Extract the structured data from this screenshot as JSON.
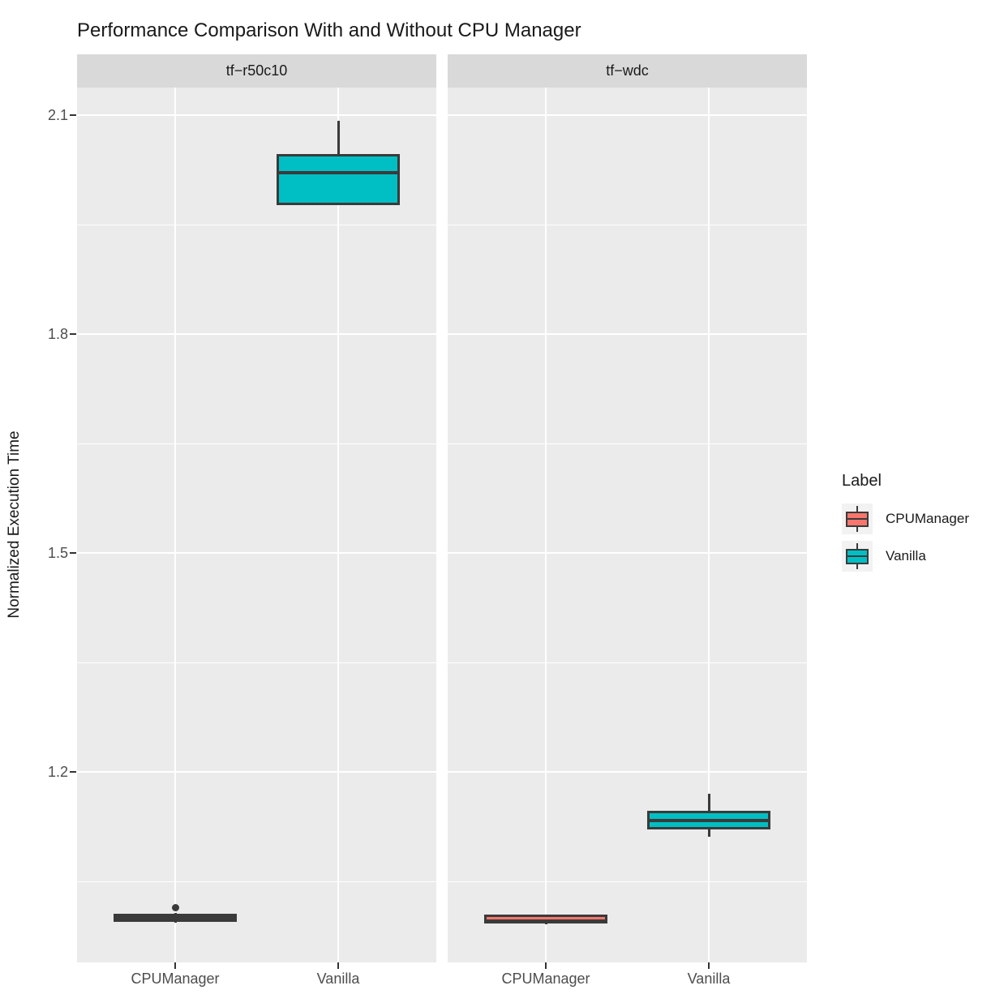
{
  "legend": {
    "title": "Label",
    "items": [
      {
        "label": "CPUManager",
        "color": "#F8766D"
      },
      {
        "label": "Vanilla",
        "color": "#00BFC4"
      }
    ]
  },
  "colors": {
    "panel_background": "#EBEBEB",
    "strip_background": "#D9D9D9",
    "gridline": "#FFFFFF",
    "box_stroke": "#3A3A3A",
    "cpumanager_fill": "#F8766D",
    "vanilla_fill": "#00BFC4",
    "tick_label": "#4D4D4D",
    "text": "#1A1A1A"
  },
  "chart_data": {
    "type": "boxplot",
    "title": "Performance Comparison With and Without CPU Manager",
    "xlabel": "",
    "ylabel": "Normalized Execution Time",
    "categories": [
      "CPUManager",
      "Vanilla"
    ],
    "y_ticks": {
      "labels": [
        "2.1",
        "1.8",
        "1.5",
        "1.2"
      ],
      "values": [
        2.1,
        1.8,
        1.5,
        1.2
      ]
    },
    "y_minor_ticks": [
      1.95,
      1.65,
      1.35,
      1.05
    ],
    "ylim": [
      0.938,
      2.113
    ],
    "grid": "on",
    "legend_position": "right",
    "facets": [
      {
        "label": "tf−r50c10",
        "boxes": [
          {
            "category": "CPUManager",
            "series": "CPUManager",
            "color": "#F8766D",
            "min": 0.993,
            "q1": 0.994,
            "median": 1.0,
            "q3": 1.006,
            "max": 1.007,
            "outliers": [
              1.014
            ]
          },
          {
            "category": "Vanilla",
            "series": "Vanilla",
            "color": "#00BFC4",
            "min": 1.977,
            "q1": 1.977,
            "median": 2.021,
            "q3": 2.047,
            "max": 2.092,
            "outliers": []
          }
        ]
      },
      {
        "label": "tf−wdc",
        "boxes": [
          {
            "category": "CPUManager",
            "series": "CPUManager",
            "color": "#F8766D",
            "min": 0.991,
            "q1": 0.992,
            "median": 0.996,
            "q3": 1.004,
            "max": 1.005,
            "outliers": []
          },
          {
            "category": "Vanilla",
            "series": "Vanilla",
            "color": "#00BFC4",
            "min": 1.111,
            "q1": 1.121,
            "median": 1.133,
            "q3": 1.147,
            "max": 1.17,
            "outliers": []
          }
        ]
      }
    ]
  }
}
